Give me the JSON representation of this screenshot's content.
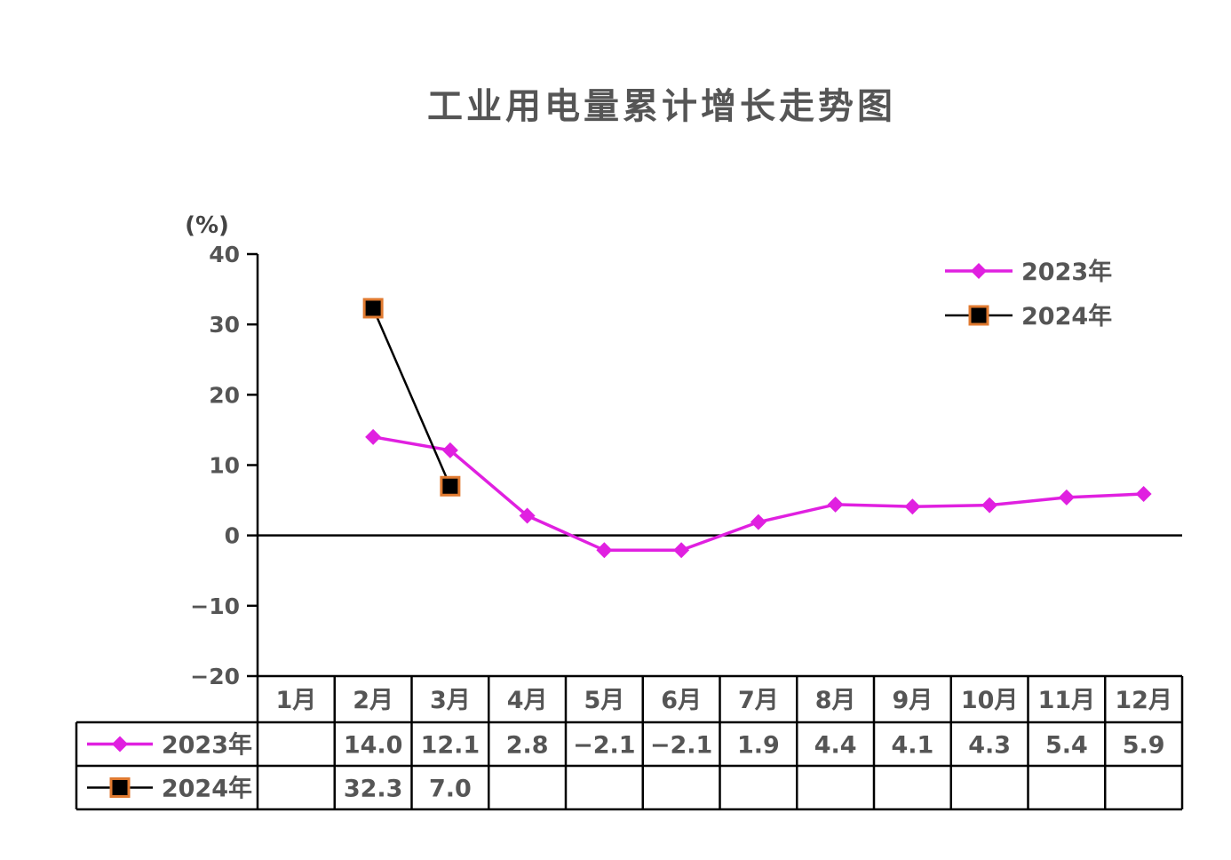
{
  "chart_data": {
    "type": "line",
    "title": "工业用电量累计增长走势图",
    "ylabel": "(%)",
    "ylim": [
      -20,
      40
    ],
    "yticks": [
      "40",
      "30",
      "20",
      "10",
      "0",
      "−10",
      "−20"
    ],
    "ytick_values": [
      40,
      30,
      20,
      10,
      0,
      -10,
      -20
    ],
    "categories": [
      "1月",
      "2月",
      "3月",
      "4月",
      "5月",
      "6月",
      "7月",
      "8月",
      "9月",
      "10月",
      "11月",
      "12月"
    ],
    "series": [
      {
        "name": "2023年",
        "color": "#e020e0",
        "marker": "diamond",
        "values": [
          null,
          14.0,
          12.1,
          2.8,
          -2.1,
          -2.1,
          1.9,
          4.4,
          4.1,
          4.3,
          5.4,
          5.9
        ],
        "labels": [
          "",
          "14.0",
          "12.1",
          "2.8",
          "−2.1",
          "−2.1",
          "1.9",
          "4.4",
          "4.1",
          "4.3",
          "5.4",
          "5.9"
        ]
      },
      {
        "name": "2024年",
        "color": "#000000",
        "marker_edge": "#e07a30",
        "marker": "square",
        "values": [
          null,
          32.3,
          7.0,
          null,
          null,
          null,
          null,
          null,
          null,
          null,
          null,
          null
        ],
        "labels": [
          "",
          "32.3",
          "7.0",
          "",
          "",
          "",
          "",
          "",
          "",
          "",
          "",
          ""
        ]
      }
    ],
    "legend": "top-right",
    "grid": false,
    "data_table": true
  }
}
